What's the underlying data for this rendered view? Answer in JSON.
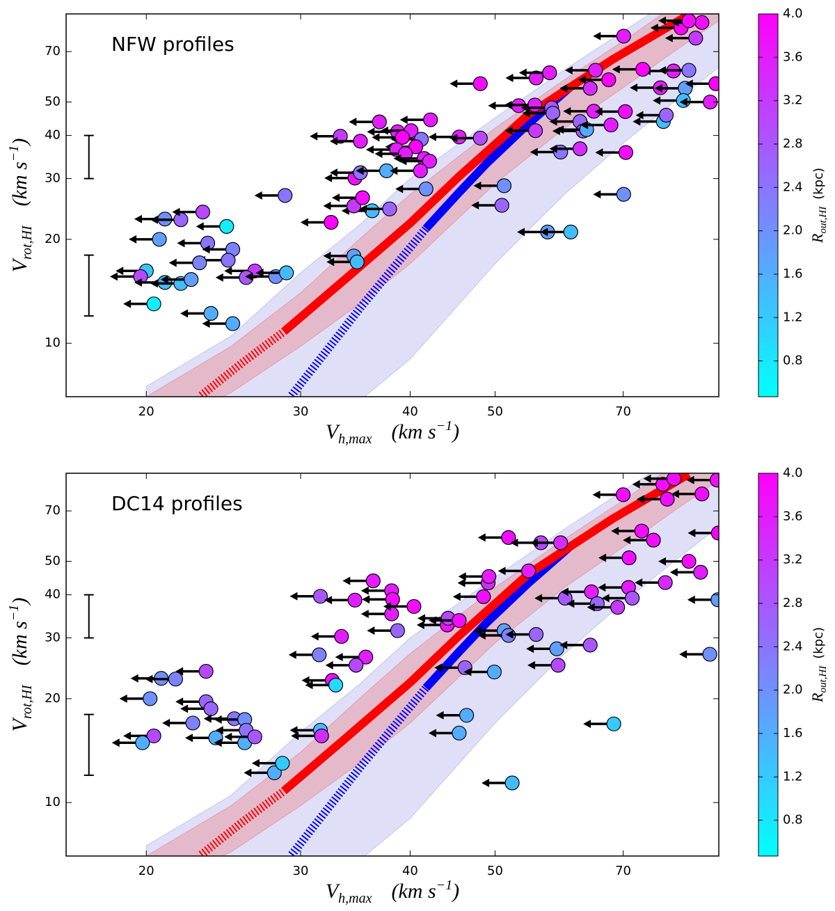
{
  "chart_data": [
    {
      "type": "scatter",
      "annotation": "NFW profiles",
      "xlabel": {
        "symbol": "V",
        "subscript": "h,max",
        "unit": "(km s",
        "exponent": "−1",
        "close": ")"
      },
      "ylabel": {
        "symbol": "V",
        "subscript": "rot,HI",
        "unit": "(km s",
        "exponent": "−1",
        "close": ")"
      },
      "xscale": "log",
      "yscale": "log",
      "xlim": [
        16.2,
        90
      ],
      "ylim": [
        7,
        90
      ],
      "xticks": [
        20,
        30,
        40,
        50,
        70
      ],
      "yticks": [
        10,
        20,
        30,
        40,
        50,
        70
      ],
      "colormap": "cool",
      "colorbar": {
        "symbol": "R",
        "subscript": "out,HI",
        "unit": "(kpc)",
        "lim": [
          0.47,
          4.0
        ],
        "ticks": [
          0.8,
          1.2,
          1.6,
          {
            "value": 2,
            "label": "2.0"
          },
          2.4,
          2.8,
          3.2,
          3.6,
          {
            "value": 4,
            "label": "4.0"
          }
        ]
      },
      "upper_limit_arrows": true,
      "bands": [
        {
          "color": "#c4c4f2",
          "x": [
            20,
            25,
            30,
            35,
            40,
            50,
            60,
            70,
            80,
            90
          ],
          "lower": [
            4,
            5,
            6,
            6.8,
            9,
            17,
            27,
            38,
            50,
            63
          ],
          "upper": [
            7.5,
            10.5,
            16,
            22,
            30,
            45,
            62,
            80,
            100,
            120
          ]
        },
        {
          "color": "#e79aa6",
          "x": [
            20,
            25,
            30,
            35,
            40,
            50,
            60,
            70,
            80,
            90
          ],
          "lower": [
            5.5,
            7.2,
            9.8,
            13,
            17,
            29,
            42,
            55,
            70,
            86
          ],
          "upper": [
            7.0,
            9.8,
            14,
            20,
            27,
            42,
            58,
            75,
            95,
            115
          ]
        }
      ],
      "curves": [
        {
          "color": "#0000ff",
          "style": "dashed",
          "x": [
            29.3,
            35.2,
            41.7
          ],
          "y": [
            7.06,
            12.8,
            21.5
          ]
        },
        {
          "color": "#0000ff",
          "style": "solid",
          "x": [
            41.7,
            45.4,
            48.9,
            54.6,
            61
          ],
          "y": [
            21.5,
            27.2,
            33.2,
            43.3,
            55.4
          ]
        },
        {
          "color": "#ff0000",
          "style": "dashed",
          "x": [
            23.1,
            25.8,
            28.7
          ],
          "y": [
            7.06,
            8.82,
            10.8
          ]
        },
        {
          "color": "#ff0000",
          "style": "solid",
          "x": [
            28.7,
            33.9,
            40.1,
            45.4,
            54.6,
            68,
            83.2
          ],
          "y": [
            10.8,
            15.5,
            22.4,
            30.3,
            46,
            66.3,
            89.5
          ]
        }
      ],
      "error_bar_x": 17.2,
      "error_bars": [
        {
          "low": 30,
          "high": 40
        },
        {
          "low": 12,
          "high": 18
        }
      ],
      "points": {
        "x": [
          21.0,
          21.9,
          23.2,
          20.7,
          24.7,
          23.5,
          25.1,
          24.8,
          23.0,
          20,
          19.7,
          21,
          21.9,
          22.5,
          26.6,
          26.0,
          28.1,
          28.9,
          20.4,
          23.7,
          25.1,
          28.8,
          32.5,
          34.5,
          34.8,
          36.2,
          37.9,
          34.5,
          35.3,
          34.6,
          35.1,
          37.6,
          33.3,
          35.1,
          36.9,
          38.7,
          40.1,
          41.2,
          39.2,
          40.6,
          38.6,
          39.5,
          41.5,
          42.1,
          41.1,
          42.2,
          41.7,
          45.5,
          48.1,
          48.1,
          51.2,
          50.9,
          55.7,
          53.2,
          55.5,
          58,
          57.7,
          58.2,
          55.6,
          59.4,
          62.5,
          57.4,
          61.0,
          62.5,
          63,
          63.6,
          64.8,
          64.2,
          65.1,
          67.8,
          70.1,
          70.5,
          70.4,
          70.1,
          77.8,
          78.4,
          77.2,
          79.9,
          83.2,
          82.4,
          82,
          88,
          89.3,
          84.7,
          81.5,
          86.1,
          83.2,
          73.7,
          67.4
        ],
        "y": [
          22.9,
          22.8,
          24.0,
          20,
          21.8,
          19.5,
          18.7,
          17.4,
          17.1,
          16.2,
          15.6,
          15.0,
          14.9,
          15.3,
          16.2,
          15.5,
          15.6,
          16.0,
          13,
          12.2,
          11.4,
          26.8,
          22.4,
          17.9,
          17.2,
          24.2,
          24.5,
          25,
          26.4,
          30.1,
          31.2,
          31.6,
          39.8,
          38.5,
          43.8,
          41,
          41.3,
          39,
          39.5,
          37.1,
          36.4,
          35.4,
          34.3,
          33.7,
          31.6,
          44.4,
          28,
          39.6,
          39.3,
          56.5,
          28.6,
          25.1,
          58.7,
          48.8,
          49,
          48.1,
          60.8,
          46.4,
          41.3,
          35.8,
          36.6,
          21,
          21,
          43.9,
          41.2,
          41.6,
          47,
          54.8,
          61.8,
          42.9,
          27,
          35.7,
          46.9,
          77.6,
          43.9,
          45.8,
          55,
          61.5,
          61.8,
          54.8,
          50.5,
          50,
          56.5,
          76.6,
          82,
          85,
          86,
          62.2,
          58
        ],
        "color_values": [
          2.0,
          2.6,
          3.0,
          1.8,
          0.7,
          2.4,
          2.2,
          2.4,
          2.2,
          1.3,
          3.0,
          1.4,
          1.4,
          1.8,
          3.2,
          2.8,
          2.0,
          1.4,
          0.7,
          1.6,
          1.6,
          2.4,
          4.0,
          1.8,
          1.4,
          1.4,
          2.6,
          3.2,
          3.8,
          3.8,
          2.4,
          1.6,
          3.2,
          3.6,
          3.6,
          3.6,
          3.6,
          2.4,
          4.0,
          4.0,
          3.6,
          3.6,
          3.6,
          3.6,
          3.6,
          3.6,
          2.0,
          3.6,
          3.0,
          3.8,
          2.0,
          2.6,
          3.6,
          3.6,
          3.6,
          2.8,
          3.6,
          2.6,
          3.2,
          2.4,
          3.4,
          1.8,
          1.4,
          2.6,
          2.8,
          1.6,
          3.6,
          3.4,
          3.6,
          3.6,
          2.0,
          3.8,
          3.8,
          3.6,
          1.4,
          2.6,
          3.6,
          3.6,
          2.4,
          1.8,
          1.4,
          3.6,
          4.0,
          3.2,
          4.0,
          3.8,
          3.8,
          4.0,
          4.0
        ]
      }
    },
    {
      "type": "scatter",
      "annotation": "DC14 profiles",
      "xlabel": {
        "symbol": "V",
        "subscript": "h,max",
        "unit": "(km s",
        "exponent": "−1",
        "close": ")"
      },
      "ylabel": {
        "symbol": "V",
        "subscript": "rot,HI",
        "unit": "(km s",
        "exponent": "−1",
        "close": ")"
      },
      "xscale": "log",
      "yscale": "log",
      "xlim": [
        16.2,
        90
      ],
      "ylim": [
        7,
        90
      ],
      "xticks": [
        20,
        30,
        40,
        50,
        70
      ],
      "yticks": [
        10,
        20,
        30,
        40,
        50,
        70
      ],
      "colormap": "cool",
      "colorbar": {
        "symbol": "R",
        "subscript": "out,HI",
        "unit": "(kpc)",
        "lim": [
          0.47,
          4.0
        ],
        "ticks": [
          0.8,
          1.2,
          1.6,
          {
            "value": 2,
            "label": "2.0"
          },
          2.4,
          2.8,
          3.2,
          3.6,
          {
            "value": 4,
            "label": "4.0"
          }
        ]
      },
      "upper_limit_arrows": true,
      "bands": [
        {
          "color": "#c4c4f2",
          "x": [
            20,
            25,
            30,
            35,
            40,
            50,
            60,
            70,
            80,
            90
          ],
          "lower": [
            4,
            5,
            6,
            6.8,
            9,
            17,
            27,
            38,
            50,
            63
          ],
          "upper": [
            7.5,
            10.5,
            16,
            22,
            30,
            45,
            62,
            80,
            100,
            120
          ]
        },
        {
          "color": "#e79aa6",
          "x": [
            20,
            25,
            30,
            35,
            40,
            50,
            60,
            70,
            80,
            90
          ],
          "lower": [
            5.5,
            7.2,
            9.8,
            13,
            17,
            29,
            42,
            55,
            70,
            86
          ],
          "upper": [
            7.0,
            9.8,
            14,
            20,
            27,
            42,
            58,
            75,
            95,
            115
          ]
        }
      ],
      "curves": [
        {
          "color": "#0000ff",
          "style": "dashed",
          "x": [
            29.3,
            35.2,
            41.7
          ],
          "y": [
            7.06,
            12.8,
            21.5
          ]
        },
        {
          "color": "#0000ff",
          "style": "solid",
          "x": [
            41.7,
            45.4,
            48.9,
            54.6,
            61
          ],
          "y": [
            21.5,
            27.2,
            33.2,
            43.3,
            55.4
          ]
        },
        {
          "color": "#ff0000",
          "style": "dashed",
          "x": [
            23.1,
            25.8,
            28.7
          ],
          "y": [
            7.06,
            8.82,
            10.8
          ]
        },
        {
          "color": "#ff0000",
          "style": "solid",
          "x": [
            28.7,
            33.9,
            40.1,
            45.4,
            54.6,
            68,
            83.2
          ],
          "y": [
            10.8,
            15.5,
            22.4,
            30.3,
            46,
            66.3,
            89.5
          ]
        }
      ],
      "error_bar_x": 17.2,
      "error_bars": [
        {
          "low": 30,
          "high": 40
        },
        {
          "low": 12,
          "high": 18
        }
      ],
      "points": {
        "x": [
          20.8,
          21.6,
          23.4,
          20.2,
          23.4,
          23.7,
          25.2,
          25.9,
          22.6,
          26,
          20.4,
          19.8,
          24,
          25.9,
          26.6,
          28.0,
          28.6,
          31.6,
          31.7,
          32.6,
          32.9,
          31.5,
          31.6,
          34.6,
          33.4,
          35.6,
          34.7,
          36.3,
          38.1,
          38.2,
          38.7,
          38.1,
          40.4,
          44.1,
          44.2,
          45.5,
          48.5,
          46.2,
          49.9,
          51.2,
          51.8,
          55.7,
          58.8,
          59,
          64.2,
          46.4,
          45.5,
          52.3,
          68.3,
          49.1,
          49.2,
          51.8,
          54.6,
          56.4,
          59.4,
          60.1,
          64.4,
          65.4,
          69,
          71,
          71.7,
          71.1,
          73.5,
          75.8,
          78.2,
          70,
          77.7,
          80,
          78.6,
          83.2,
          85.8,
          86.1,
          89.9,
          87.9,
          89.8,
          89.6
        ],
        "y": [
          22.9,
          22.8,
          24,
          20,
          19.6,
          18.7,
          17.5,
          17.4,
          17,
          16.2,
          15.6,
          14.9,
          15.4,
          14.9,
          15.5,
          12.2,
          13,
          16.2,
          15.6,
          22.6,
          21.9,
          26.8,
          39.6,
          38.6,
          30.3,
          26.4,
          25,
          43.9,
          41.1,
          38.8,
          31.5,
          35.2,
          37,
          32.7,
          34.2,
          33.7,
          39.5,
          24.6,
          23.9,
          31.5,
          30.5,
          30.7,
          27.9,
          25,
          28.6,
          17.9,
          15.9,
          11.4,
          16.9,
          43.3,
          45.2,
          58.6,
          46.9,
          56.6,
          56.6,
          39.1,
          40.8,
          37.7,
          36.8,
          42,
          39.1,
          51.2,
          61.2,
          57.6,
          43.4,
          78,
          83.6,
          86.8,
          75.7,
          50,
          46.5,
          78.4,
          60.4,
          26.9,
          38.7,
          86
        ],
        "color_values": [
          2.0,
          2.2,
          3.0,
          2.0,
          2.6,
          2.6,
          2.4,
          2.0,
          2.2,
          2.4,
          3.0,
          1.6,
          1.6,
          1.6,
          2.8,
          1.6,
          1.2,
          1.4,
          3.4,
          3.8,
          1.0,
          2.2,
          2.8,
          3.6,
          3.6,
          3.6,
          3.0,
          3.6,
          3.6,
          3.8,
          2.6,
          3.6,
          3.8,
          3.8,
          3.0,
          3.8,
          3.8,
          2.6,
          1.6,
          1.8,
          2.2,
          2.6,
          1.8,
          3.0,
          2.8,
          1.6,
          1.6,
          1.4,
          1.2,
          3.4,
          3.6,
          3.8,
          3.6,
          3.0,
          3.4,
          2.8,
          3.6,
          2.6,
          3.2,
          3.6,
          2.8,
          3.8,
          3.8,
          3.8,
          3.4,
          3.8,
          3.8,
          3.8,
          3.8,
          3.8,
          3.6,
          3.8,
          4.0,
          2.0,
          1.8,
          3.8
        ]
      }
    }
  ]
}
